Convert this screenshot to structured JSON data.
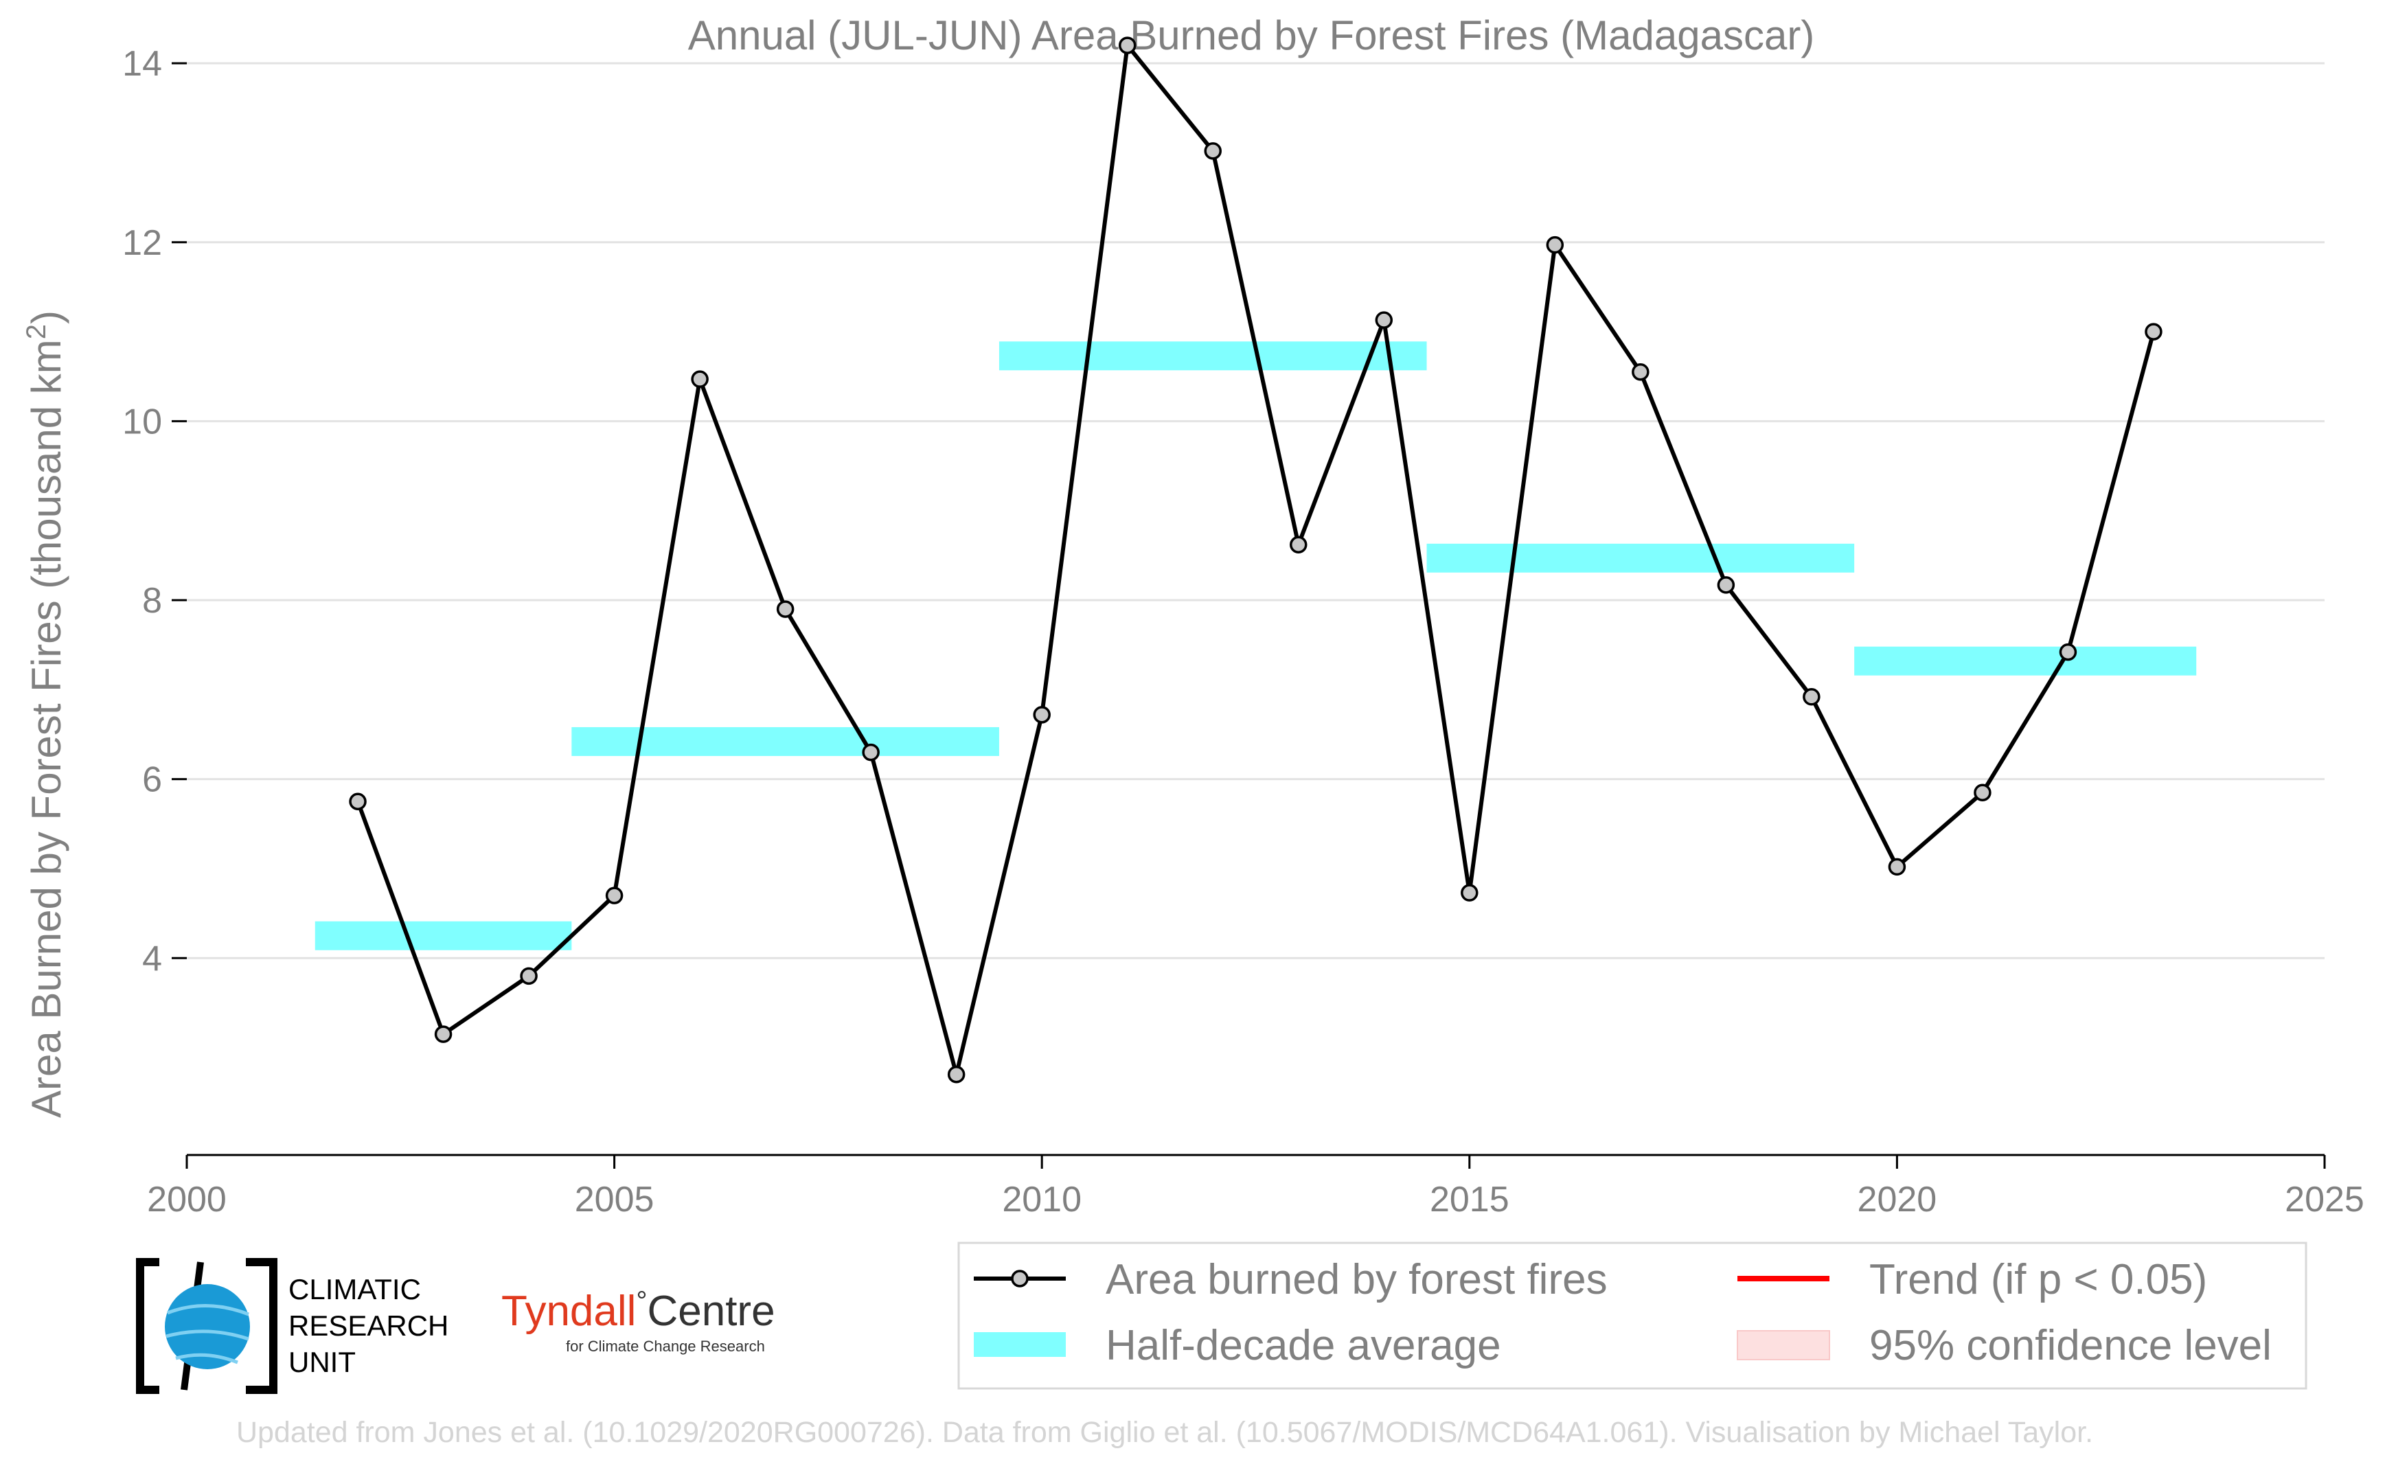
{
  "chart_data": {
    "type": "line",
    "title": "Annual (JUL-JUN) Area Burned by Forest Fires (Madagascar)",
    "ylabel_main": "Area Burned by Forest Fires (thousand km",
    "ylabel_sup": "2",
    "ylabel_end": ")",
    "xlabel": "",
    "xlim": [
      2000,
      2025
    ],
    "ylim": [
      1.8,
      14.4
    ],
    "xticks": [
      "2000",
      "2005",
      "2010",
      "2015",
      "2020",
      "2025"
    ],
    "yticks": [
      "4",
      "6",
      "8",
      "10",
      "12",
      "14"
    ],
    "grid": true,
    "series": [
      {
        "name": "Area burned by forest fires",
        "color": "#000000",
        "marker_fill": "#c8c8c8",
        "x": [
          2002,
          2003,
          2004,
          2005,
          2006,
          2007,
          2008,
          2009,
          2010,
          2011,
          2012,
          2013,
          2014,
          2015,
          2016,
          2017,
          2018,
          2019,
          2020,
          2021,
          2022,
          2023
        ],
        "y": [
          5.75,
          3.15,
          3.8,
          4.7,
          10.47,
          7.9,
          6.3,
          2.7,
          6.72,
          14.2,
          13.02,
          8.62,
          11.13,
          4.73,
          11.97,
          10.55,
          8.17,
          6.92,
          5.02,
          5.85,
          7.42,
          11.0
        ]
      },
      {
        "name": "Half-decade average",
        "color": "#80ffff",
        "segments": [
          {
            "x0": 2001.5,
            "x1": 2004.5,
            "y": 4.25
          },
          {
            "x0": 2004.5,
            "x1": 2009.5,
            "y": 6.42
          },
          {
            "x0": 2009.5,
            "x1": 2014.5,
            "y": 10.73
          },
          {
            "x0": 2014.5,
            "x1": 2019.5,
            "y": 8.47
          },
          {
            "x0": 2019.5,
            "x1": 2023.5,
            "y": 7.32
          }
        ]
      }
    ],
    "legend": {
      "placement": "bottom-right",
      "items": [
        {
          "label": "Area burned by forest fires",
          "kind": "line-marker",
          "color": "#000000"
        },
        {
          "label": "Trend (if p < 0.05)",
          "kind": "line",
          "color": "#ff0000"
        },
        {
          "label": "Half-decade average",
          "kind": "band",
          "color": "#80ffff"
        },
        {
          "label": "95% confidence level",
          "kind": "patch",
          "color": "#fde0e0"
        }
      ]
    }
  },
  "logos": {
    "cru": [
      "CLIMATIC",
      "RESEARCH",
      "UNIT"
    ],
    "tyndall_main": "Tyndall",
    "tyndall_degree": "°",
    "tyndall_centre": "Centre",
    "tyndall_sub": "for Climate Change Research"
  },
  "credit": "Updated from Jones et al. (10.1029/2020RG000726). Data from Giglio et al. (10.5067/MODIS/MCD64A1.061). Visualisation by Michael Taylor."
}
